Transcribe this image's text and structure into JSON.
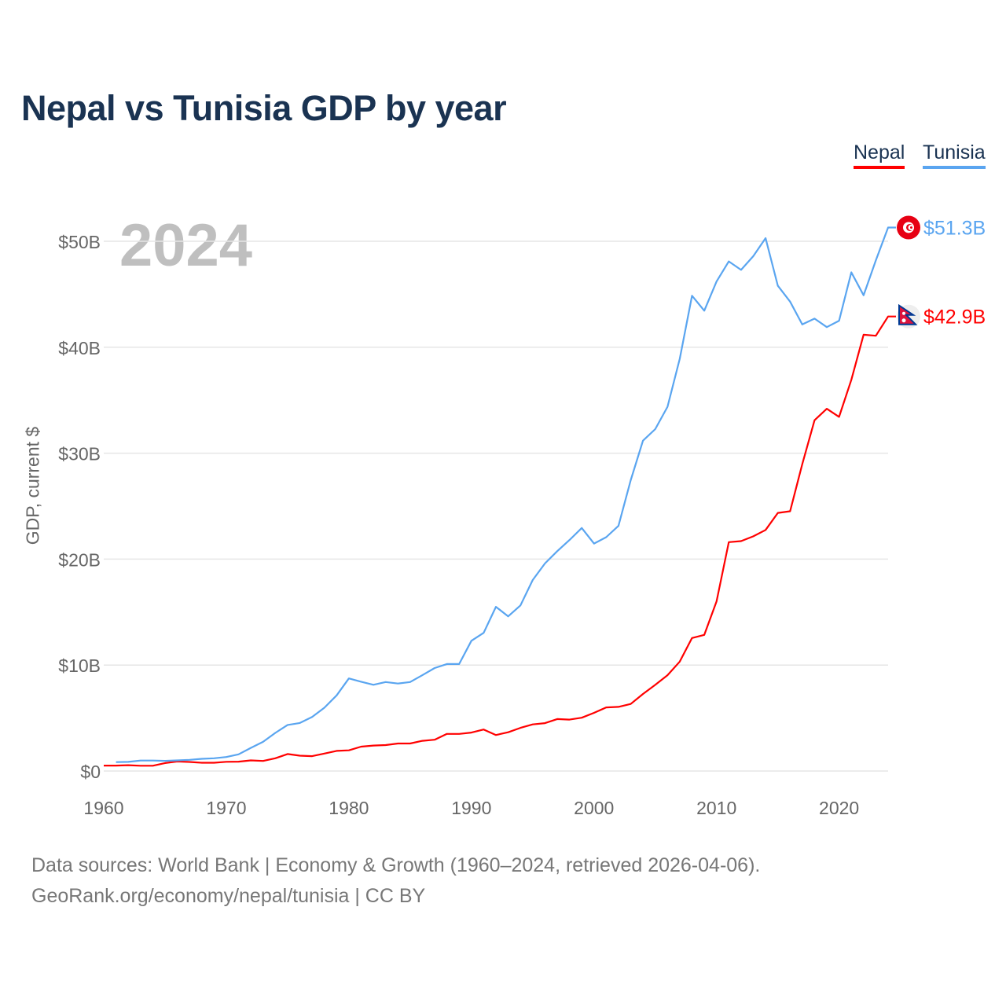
{
  "title": "Nepal vs Tunisia GDP by year",
  "legend": [
    {
      "label": "Nepal",
      "color": "#ff0000"
    },
    {
      "label": "Tunisia",
      "color": "#5aa5f0"
    }
  ],
  "source_line1": "Data sources: World Bank | Economy & Growth (1960–2024, retrieved 2026-04-06).",
  "source_line2": "GeoRank.org/economy/nepal/tunisia | CC BY",
  "chart_data": {
    "type": "line",
    "title": "Nepal vs Tunisia GDP by year",
    "xlabel": "",
    "ylabel": "GDP, current $",
    "year_label": "2024",
    "xlim": [
      1960,
      2024
    ],
    "ylim": [
      0,
      50
    ],
    "x_ticks": [
      1960,
      1970,
      1980,
      1990,
      2000,
      2010,
      2020
    ],
    "y_ticks": [
      0,
      10,
      20,
      30,
      40,
      50
    ],
    "y_tick_labels": [
      "$0",
      "$10B",
      "$20B",
      "$30B",
      "$40B",
      "$50B"
    ],
    "grid": true,
    "legend_position": "top-right",
    "series": [
      {
        "name": "Nepal",
        "color": "#ff0000",
        "start_year": 1960,
        "end_label": "$42.9B",
        "flag": "nepal-flag",
        "values": [
          0.51,
          0.51,
          0.55,
          0.5,
          0.5,
          0.75,
          0.9,
          0.85,
          0.78,
          0.78,
          0.87,
          0.88,
          1.0,
          0.95,
          1.2,
          1.6,
          1.45,
          1.4,
          1.65,
          1.9,
          1.95,
          2.3,
          2.4,
          2.45,
          2.6,
          2.6,
          2.85,
          2.95,
          3.5,
          3.5,
          3.63,
          3.92,
          3.4,
          3.66,
          4.07,
          4.4,
          4.52,
          4.9,
          4.85,
          5.03,
          5.49,
          6.0,
          6.05,
          6.33,
          7.27,
          8.13,
          9.04,
          10.33,
          12.55,
          12.85,
          16.0,
          21.6,
          21.7,
          22.15,
          22.75,
          24.36,
          24.52,
          28.97,
          33.11,
          34.19,
          33.43,
          36.92,
          41.18,
          41.08,
          42.9
        ]
      },
      {
        "name": "Tunisia",
        "color": "#5aa5f0",
        "start_year": 1961,
        "end_label": "$51.3B",
        "flag": "tunisia-flag",
        "values": [
          0.84,
          0.86,
          0.99,
          0.99,
          0.96,
          1.0,
          1.05,
          1.15,
          1.2,
          1.32,
          1.57,
          2.18,
          2.75,
          3.6,
          4.35,
          4.53,
          5.1,
          5.97,
          7.14,
          8.74,
          8.43,
          8.14,
          8.4,
          8.26,
          8.4,
          9.04,
          9.72,
          10.1,
          10.1,
          12.29,
          13.04,
          15.5,
          14.6,
          15.63,
          18.03,
          19.59,
          20.75,
          21.8,
          22.94,
          21.47,
          22.07,
          23.14,
          27.45,
          31.18,
          32.27,
          34.38,
          38.91,
          44.86,
          43.45,
          46.2,
          48.1,
          47.3,
          48.6,
          50.3,
          45.8,
          44.3,
          42.15,
          42.7,
          41.9,
          42.5,
          47.07,
          44.9,
          48.2,
          51.3
        ]
      }
    ]
  }
}
